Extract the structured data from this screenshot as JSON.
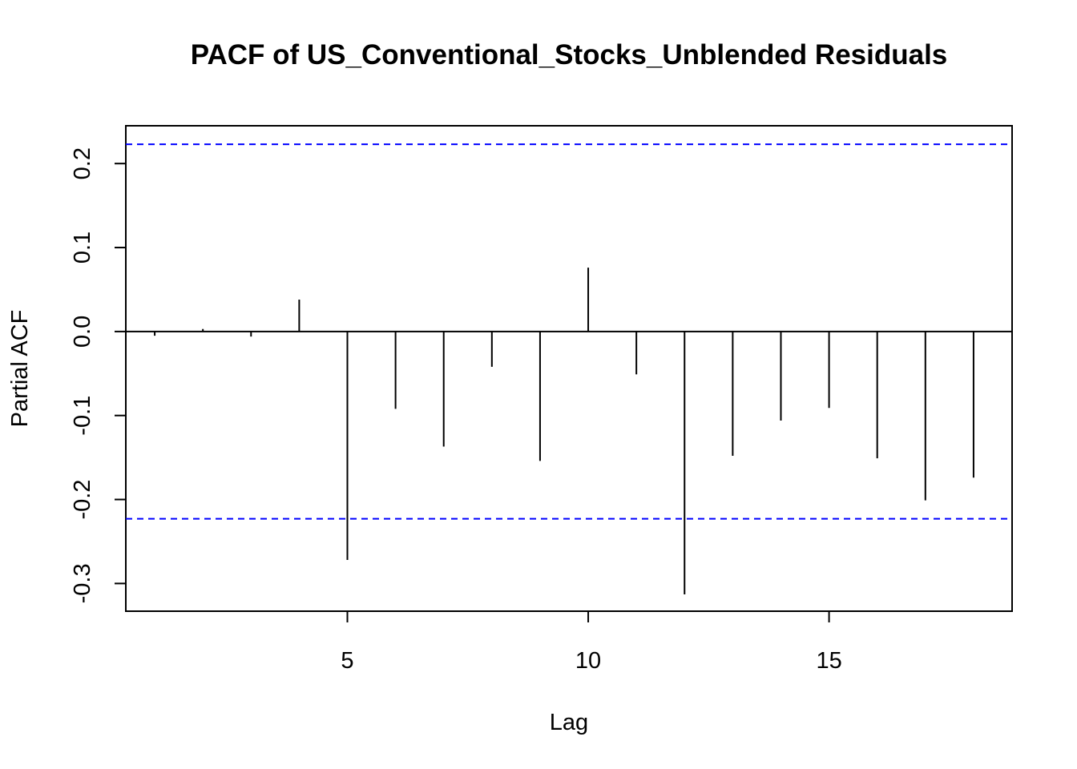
{
  "chart_data": {
    "type": "bar",
    "title": "PACF of US_Conventional_Stocks_Unblended Residuals",
    "xlabel": "Lag",
    "ylabel": "Partial ACF",
    "x": [
      1,
      2,
      3,
      4,
      5,
      6,
      7,
      8,
      9,
      10,
      11,
      12,
      13,
      14,
      15,
      16,
      17,
      18
    ],
    "values": [
      -0.005,
      0.003,
      -0.006,
      0.038,
      -0.272,
      -0.092,
      -0.137,
      -0.042,
      -0.154,
      0.076,
      -0.051,
      -0.313,
      -0.148,
      -0.106,
      -0.091,
      -0.151,
      -0.201,
      -0.174
    ],
    "xlim": [
      0.4,
      18.8
    ],
    "ylim": [
      -0.333,
      0.245
    ],
    "xticks": [
      5,
      10,
      15
    ],
    "yticks": [
      -0.3,
      -0.2,
      -0.1,
      0.0,
      0.1,
      0.2
    ],
    "ytick_labels": [
      "-0.3",
      "-0.2",
      "-0.1",
      "0.0",
      "0.1",
      "0.2"
    ],
    "confidence_bounds": [
      -0.223,
      0.223
    ],
    "bound_color": "#0000ff",
    "bar_color": "#000000",
    "grid": false
  }
}
